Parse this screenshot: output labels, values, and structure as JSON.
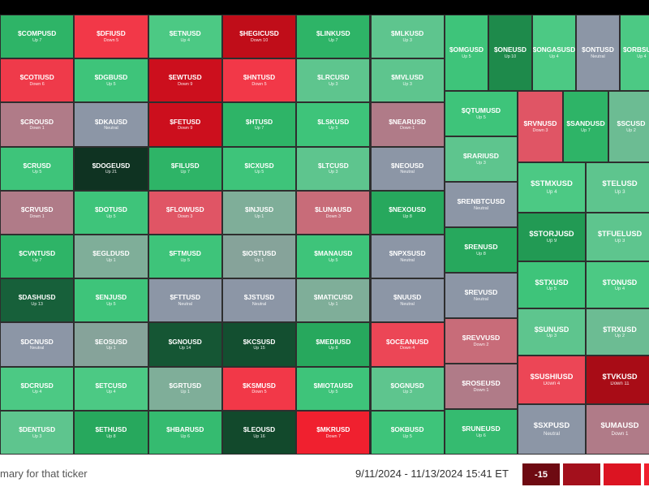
{
  "tiles": [
    {
      "ticker": "$COMPUSD",
      "status": "Up 7",
      "color": "#2eb467"
    },
    {
      "ticker": "$COTIUSD",
      "status": "Down 6",
      "color": "#ef3a4a"
    },
    {
      "ticker": "$CROUSD",
      "status": "Down 1",
      "color": "#b07b88"
    },
    {
      "ticker": "$CRUSD",
      "status": "Up 5",
      "color": "#3ec47a"
    },
    {
      "ticker": "$CRVUSD",
      "status": "Down 1",
      "color": "#b07b88"
    },
    {
      "ticker": "$CVNTUSD",
      "status": "Up 7",
      "color": "#2eb467"
    },
    {
      "ticker": "$DASHUSD",
      "status": "Up 13",
      "color": "#17603a"
    },
    {
      "ticker": "$DCNUSD",
      "status": "Neutral",
      "color": "#8c96a6"
    },
    {
      "ticker": "$DCRUSD",
      "status": "Up 4",
      "color": "#4cc984"
    },
    {
      "ticker": "$DENTUSD",
      "status": "Up 3",
      "color": "#5ec58e"
    },
    {
      "ticker": "$DFIUSD",
      "status": "Down 5",
      "color": "#f23848"
    },
    {
      "ticker": "$DGBUSD",
      "status": "Up 5",
      "color": "#3ec47a"
    },
    {
      "ticker": "$DKAUSD",
      "status": "Neutral",
      "color": "#8c96a6"
    },
    {
      "ticker": "$DOGEUSD",
      "status": "Up 21",
      "color": "#0f3322"
    },
    {
      "ticker": "$DOTUSD",
      "status": "Up 5",
      "color": "#3ec47a"
    },
    {
      "ticker": "$EGLDUSD",
      "status": "Up 1",
      "color": "#7fae99"
    },
    {
      "ticker": "$ENJUSD",
      "status": "Up 5",
      "color": "#3ec47a"
    },
    {
      "ticker": "$EOSUSD",
      "status": "Up 1",
      "color": "#86a39a"
    },
    {
      "ticker": "$ETCUSD",
      "status": "Up 4",
      "color": "#4cc984"
    },
    {
      "ticker": "$ETHUSD",
      "status": "Up 8",
      "color": "#27a85d"
    },
    {
      "ticker": "$ETNUSD",
      "status": "Up 4",
      "color": "#4cc984"
    },
    {
      "ticker": "$EWTUSD",
      "status": "Down 9",
      "color": "#cc0f1d"
    },
    {
      "ticker": "$FETUSD",
      "status": "Down 9",
      "color": "#cc0f1d"
    },
    {
      "ticker": "$FILUSD",
      "status": "Up 7",
      "color": "#2eb467"
    },
    {
      "ticker": "$FLOWUSD",
      "status": "Down 3",
      "color": "#e05565"
    },
    {
      "ticker": "$FTMUSD",
      "status": "Up 5",
      "color": "#3ec47a"
    },
    {
      "ticker": "$FTTUSD",
      "status": "Neutral",
      "color": "#8c96a6"
    },
    {
      "ticker": "$GNOUSD",
      "status": "Up 14",
      "color": "#155634"
    },
    {
      "ticker": "$GRTUSD",
      "status": "Up 1",
      "color": "#7fae99"
    },
    {
      "ticker": "$HBARUSD",
      "status": "Up 6",
      "color": "#35bb70"
    },
    {
      "ticker": "$HEGICUSD",
      "status": "Down 10",
      "color": "#c00d19"
    },
    {
      "ticker": "$HNTUSD",
      "status": "Down 5",
      "color": "#f23848"
    },
    {
      "ticker": "$HTUSD",
      "status": "Up 7",
      "color": "#2eb467"
    },
    {
      "ticker": "$ICXUSD",
      "status": "Up 5",
      "color": "#3ec47a"
    },
    {
      "ticker": "$INJUSD",
      "status": "Up 1",
      "color": "#7fae99"
    },
    {
      "ticker": "$IOSTUSD",
      "status": "Up 1",
      "color": "#86a39a"
    },
    {
      "ticker": "$JSTUSD",
      "status": "Neutral",
      "color": "#8c96a6"
    },
    {
      "ticker": "$KCSUSD",
      "status": "Up 15",
      "color": "#134f30"
    },
    {
      "ticker": "$KSMUSD",
      "status": "Down 5",
      "color": "#f23848"
    },
    {
      "ticker": "$LEOUSD",
      "status": "Up 16",
      "color": "#12492c"
    },
    {
      "ticker": "$LINKUSD",
      "status": "Up 7",
      "color": "#2eb467"
    },
    {
      "ticker": "$LRCUSD",
      "status": "Up 3",
      "color": "#5ec58e"
    },
    {
      "ticker": "$LSKUSD",
      "status": "Up 5",
      "color": "#3ec47a"
    },
    {
      "ticker": "$LTCUSD",
      "status": "Up 3",
      "color": "#5ec58e"
    },
    {
      "ticker": "$LUNAUSD",
      "status": "Down 3",
      "color": "#c86c79"
    },
    {
      "ticker": "$MANAUSD",
      "status": "Up 5",
      "color": "#3ec47a"
    },
    {
      "ticker": "$MATICUSD",
      "status": "Up 1",
      "color": "#7fae99"
    },
    {
      "ticker": "$MEDIUSD",
      "status": "Up 8",
      "color": "#27a85d"
    },
    {
      "ticker": "$MIOTAUSD",
      "status": "Up 5",
      "color": "#3ec47a"
    },
    {
      "ticker": "$MKRUSD",
      "status": "Down 7",
      "color": "#f0202f"
    },
    {
      "ticker": "$MLKUSD",
      "status": "Up 3",
      "color": "#5ec58e"
    },
    {
      "ticker": "$MVLUSD",
      "status": "Up 3",
      "color": "#5ec58e"
    },
    {
      "ticker": "$NEARUSD",
      "status": "Down 1",
      "color": "#b07b88"
    },
    {
      "ticker": "$NEOUSD",
      "status": "Neutral",
      "color": "#8c96a6"
    },
    {
      "ticker": "$NEXOUSD",
      "status": "Up 8",
      "color": "#27a85d"
    },
    {
      "ticker": "$NPXSUSD",
      "status": "Neutral",
      "color": "#8c96a6"
    },
    {
      "ticker": "$NUUSD",
      "status": "Neutral",
      "color": "#8c96a6"
    },
    {
      "ticker": "$OCEANUSD",
      "status": "Down 4",
      "color": "#ec4656"
    },
    {
      "ticker": "$OGNUSD",
      "status": "Up 3",
      "color": "#5ec58e"
    },
    {
      "ticker": "$OKBUSD",
      "status": "Up 5",
      "color": "#3ec47a"
    },
    {
      "ticker": "$OMGUSD",
      "status": "Up 5",
      "color": "#3ec47a"
    },
    {
      "ticker": "$ONEUSD",
      "status": "Up 10",
      "color": "#1e8a4b"
    },
    {
      "ticker": "$ONGASUSD",
      "status": "Up 4",
      "color": "#4cc984"
    },
    {
      "ticker": "$ONTUSD",
      "status": "Neutral",
      "color": "#8c96a6"
    },
    {
      "ticker": "$ORBSUSD",
      "status": "Up 4",
      "color": "#4cc984"
    },
    {
      "ticker": "$QTUMUSD",
      "status": "Up 5",
      "color": "#3ec47a"
    },
    {
      "ticker": "$RARIUSD",
      "status": "Up 3",
      "color": "#5ec58e"
    },
    {
      "ticker": "$RENBTCUSD",
      "status": "Neutral",
      "color": "#8c96a6"
    },
    {
      "ticker": "$RENUSD",
      "status": "Up 8",
      "color": "#27a85d"
    },
    {
      "ticker": "$REVUSD",
      "status": "Neutral",
      "color": "#8c96a6"
    },
    {
      "ticker": "$REVVUSD",
      "status": "Down 2",
      "color": "#c86c79"
    },
    {
      "ticker": "$ROSEUSD",
      "status": "Down 1",
      "color": "#b07b88"
    },
    {
      "ticker": "$RUNEUSD",
      "status": "Up 6",
      "color": "#35bb70"
    },
    {
      "ticker": "$RVNUSD",
      "status": "Down 3",
      "color": "#e05565"
    },
    {
      "ticker": "$SANDUSD",
      "status": "Up 7",
      "color": "#2eb467"
    },
    {
      "ticker": "$SCUSD",
      "status": "Up 2",
      "color": "#6cbc93"
    },
    {
      "ticker": "$STMXUSD",
      "status": "Up 4",
      "color": "#4cc984"
    },
    {
      "ticker": "$TELUSD",
      "status": "Up 3",
      "color": "#5ec58e"
    },
    {
      "ticker": "$STORJUSD",
      "status": "Up 9",
      "color": "#229a54"
    },
    {
      "ticker": "$TFUELUSD",
      "status": "Up 3",
      "color": "#5ec58e"
    },
    {
      "ticker": "$STXUSD",
      "status": "Up 5",
      "color": "#3ec47a"
    },
    {
      "ticker": "$TONUSD",
      "status": "Up 4",
      "color": "#4cc984"
    },
    {
      "ticker": "$SUNUSD",
      "status": "Up 3",
      "color": "#5ec58e"
    },
    {
      "ticker": "$TRXUSD",
      "status": "Up 2",
      "color": "#6cbc93"
    },
    {
      "ticker": "$SUSHIUSD",
      "status": "Down 4",
      "color": "#ec4656"
    },
    {
      "ticker": "$TVKUSD",
      "status": "Down 11",
      "color": "#a80c16"
    },
    {
      "ticker": "$SXPUSD",
      "status": "Neutral",
      "color": "#8c96a6"
    },
    {
      "ticker": "$UMAUSD",
      "status": "Down 1",
      "color": "#b07b88"
    }
  ],
  "footer": {
    "hint": "mary for that ticker",
    "date_range": "9/11/2024 - 11/13/2024 15:41 ET"
  },
  "legend": {
    "items": [
      {
        "label": "-15",
        "color": "#6e0a12"
      },
      {
        "color": "#a3101c"
      },
      {
        "color": "#dc1422"
      },
      {
        "color": "#f0202e"
      }
    ]
  }
}
